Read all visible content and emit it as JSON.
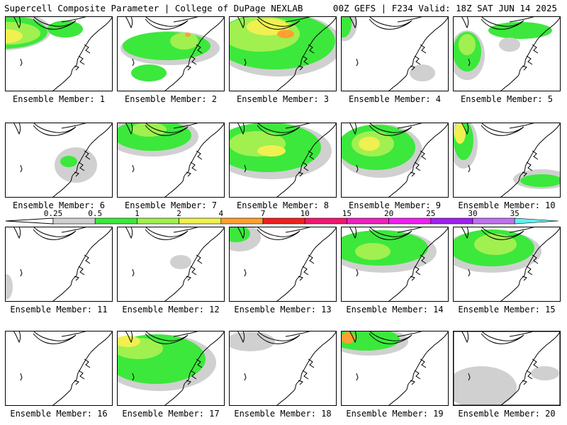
{
  "header": {
    "left": "Supercell Composite Parameter | College of DuPage NEXLAB",
    "right": "00Z GEFS | F234 Valid: 18Z SAT JUN 14 2025"
  },
  "colorbar": {
    "ticks": [
      "0.25",
      "0.5",
      "1",
      "2",
      "4",
      "7",
      "10",
      "15",
      "20",
      "25",
      "30",
      "35"
    ],
    "colors": [
      "#d0d0d0",
      "#3ce83c",
      "#a0f050",
      "#f0f050",
      "#ffa030",
      "#f02020",
      "#f01870",
      "#f020c0",
      "#f020f0",
      "#a020f0",
      "#c070f0",
      "#60f0f0"
    ]
  },
  "members": [
    {
      "label": "Ensemble Member: 1",
      "blobs": [
        {
          "x": -5,
          "y": 20,
          "rx": 70,
          "ry": 28,
          "c": 0
        },
        {
          "x": -5,
          "y": 22,
          "rx": 65,
          "ry": 24,
          "c": 1
        },
        {
          "x": 5,
          "y": 24,
          "rx": 45,
          "ry": 16,
          "c": 2
        },
        {
          "x": 0,
          "y": 28,
          "rx": 25,
          "ry": 10,
          "c": 3
        },
        {
          "x": 85,
          "y": 18,
          "rx": 25,
          "ry": 12,
          "c": 1
        }
      ]
    },
    {
      "label": "Ensemble Member: 2",
      "blobs": [
        {
          "x": 75,
          "y": 45,
          "rx": 70,
          "ry": 24,
          "c": 0
        },
        {
          "x": 70,
          "y": 42,
          "rx": 62,
          "ry": 20,
          "c": 1
        },
        {
          "x": 95,
          "y": 35,
          "rx": 20,
          "ry": 12,
          "c": 2
        },
        {
          "x": 45,
          "y": 80,
          "rx": 25,
          "ry": 12,
          "c": 1
        },
        {
          "x": 100,
          "y": 26,
          "rx": 4,
          "ry": 3,
          "c": 4
        }
      ]
    },
    {
      "label": "Ensemble Member: 3",
      "blobs": [
        {
          "x": 70,
          "y": 40,
          "rx": 90,
          "ry": 45,
          "c": 0
        },
        {
          "x": 65,
          "y": 35,
          "rx": 85,
          "ry": 40,
          "c": 1
        },
        {
          "x": 45,
          "y": 25,
          "rx": 55,
          "ry": 25,
          "c": 2
        },
        {
          "x": 55,
          "y": 15,
          "rx": 30,
          "ry": 12,
          "c": 3
        },
        {
          "x": 80,
          "y": 25,
          "rx": 12,
          "ry": 6,
          "c": 4
        }
      ]
    },
    {
      "label": "Ensemble Member: 4",
      "blobs": [
        {
          "x": 5,
          "y": 10,
          "rx": 18,
          "ry": 25,
          "c": 0
        },
        {
          "x": 3,
          "y": 10,
          "rx": 12,
          "ry": 20,
          "c": 1
        },
        {
          "x": 120,
          "y": 85,
          "rx": 8,
          "ry": 5,
          "c": 1
        },
        {
          "x": 115,
          "y": 80,
          "rx": 18,
          "ry": 12,
          "c": 0
        }
      ]
    },
    {
      "label": "Ensemble Member: 5",
      "blobs": [
        {
          "x": 20,
          "y": 55,
          "rx": 25,
          "ry": 35,
          "c": 0
        },
        {
          "x": 20,
          "y": 50,
          "rx": 20,
          "ry": 28,
          "c": 1
        },
        {
          "x": 20,
          "y": 40,
          "rx": 12,
          "ry": 15,
          "c": 2
        },
        {
          "x": 95,
          "y": 20,
          "rx": 45,
          "ry": 12,
          "c": 1
        },
        {
          "x": 80,
          "y": 40,
          "rx": 15,
          "ry": 10,
          "c": 0
        }
      ]
    },
    {
      "label": "Ensemble Member: 6",
      "blobs": [
        {
          "x": 100,
          "y": 60,
          "rx": 30,
          "ry": 25,
          "c": 0
        },
        {
          "x": 90,
          "y": 55,
          "rx": 12,
          "ry": 8,
          "c": 1
        }
      ]
    },
    {
      "label": "Ensemble Member: 7",
      "blobs": [
        {
          "x": 50,
          "y": 20,
          "rx": 65,
          "ry": 28,
          "c": 0
        },
        {
          "x": 50,
          "y": 18,
          "rx": 55,
          "ry": 22,
          "c": 1
        },
        {
          "x": 45,
          "y": 10,
          "rx": 25,
          "ry": 10,
          "c": 2
        }
      ]
    },
    {
      "label": "Ensemble Member: 8",
      "blobs": [
        {
          "x": 60,
          "y": 40,
          "rx": 85,
          "ry": 40,
          "c": 0
        },
        {
          "x": 55,
          "y": 35,
          "rx": 75,
          "ry": 35,
          "c": 1
        },
        {
          "x": 40,
          "y": 30,
          "rx": 40,
          "ry": 18,
          "c": 2
        },
        {
          "x": 60,
          "y": 40,
          "rx": 20,
          "ry": 8,
          "c": 3
        }
      ]
    },
    {
      "label": "Ensemble Member: 9",
      "blobs": [
        {
          "x": 55,
          "y": 40,
          "rx": 60,
          "ry": 38,
          "c": 0
        },
        {
          "x": 50,
          "y": 35,
          "rx": 55,
          "ry": 32,
          "c": 1
        },
        {
          "x": 45,
          "y": 30,
          "rx": 30,
          "ry": 18,
          "c": 2
        },
        {
          "x": 40,
          "y": 30,
          "rx": 15,
          "ry": 10,
          "c": 3
        }
      ]
    },
    {
      "label": "Ensemble Member: 10",
      "blobs": [
        {
          "x": 15,
          "y": 30,
          "rx": 20,
          "ry": 35,
          "c": 0
        },
        {
          "x": 15,
          "y": 25,
          "rx": 14,
          "ry": 28,
          "c": 1
        },
        {
          "x": 10,
          "y": 15,
          "rx": 8,
          "ry": 15,
          "c": 3
        },
        {
          "x": 125,
          "y": 80,
          "rx": 40,
          "ry": 14,
          "c": 0
        },
        {
          "x": 125,
          "y": 82,
          "rx": 30,
          "ry": 9,
          "c": 1
        }
      ]
    },
    {
      "label": "Ensemble Member: 11",
      "blobs": [
        {
          "x": 2,
          "y": 85,
          "rx": 6,
          "ry": 15,
          "c": 1
        },
        {
          "x": 2,
          "y": 85,
          "rx": 9,
          "ry": 18,
          "c": 0
        }
      ]
    },
    {
      "label": "Ensemble Member: 12",
      "blobs": [
        {
          "x": 90,
          "y": 50,
          "rx": 15,
          "ry": 10,
          "c": 0
        }
      ]
    },
    {
      "label": "Ensemble Member: 13",
      "blobs": [
        {
          "x": 15,
          "y": 15,
          "rx": 30,
          "ry": 20,
          "c": 0
        },
        {
          "x": 10,
          "y": 10,
          "rx": 20,
          "ry": 12,
          "c": 1
        }
      ]
    },
    {
      "label": "Ensemble Member: 14",
      "blobs": [
        {
          "x": 60,
          "y": 35,
          "rx": 75,
          "ry": 30,
          "c": 0
        },
        {
          "x": 55,
          "y": 30,
          "rx": 68,
          "ry": 25,
          "c": 1
        },
        {
          "x": 45,
          "y": 35,
          "rx": 25,
          "ry": 12,
          "c": 2
        }
      ]
    },
    {
      "label": "Ensemble Member: 15",
      "blobs": [
        {
          "x": 55,
          "y": 35,
          "rx": 70,
          "ry": 30,
          "c": 0
        },
        {
          "x": 55,
          "y": 30,
          "rx": 60,
          "ry": 26,
          "c": 1
        },
        {
          "x": 60,
          "y": 25,
          "rx": 30,
          "ry": 15,
          "c": 2
        }
      ]
    },
    {
      "label": "Ensemble Member: 16",
      "blobs": []
    },
    {
      "label": "Ensemble Member: 17",
      "blobs": [
        {
          "x": 60,
          "y": 45,
          "rx": 80,
          "ry": 40,
          "c": 0
        },
        {
          "x": 55,
          "y": 40,
          "rx": 70,
          "ry": 35,
          "c": 1
        },
        {
          "x": 30,
          "y": 25,
          "rx": 35,
          "ry": 15,
          "c": 2
        },
        {
          "x": 15,
          "y": 15,
          "rx": 18,
          "ry": 8,
          "c": 3
        }
      ]
    },
    {
      "label": "Ensemble Member: 18",
      "blobs": [
        {
          "x": 30,
          "y": 15,
          "rx": 28,
          "ry": 10,
          "c": 1
        },
        {
          "x": 30,
          "y": 15,
          "rx": 35,
          "ry": 14,
          "c": 0
        }
      ]
    },
    {
      "label": "Ensemble Member: 19",
      "blobs": [
        {
          "x": 40,
          "y": 15,
          "rx": 55,
          "ry": 20,
          "c": 0
        },
        {
          "x": 35,
          "y": 12,
          "rx": 48,
          "ry": 16,
          "c": 1
        },
        {
          "x": 10,
          "y": 10,
          "rx": 10,
          "ry": 8,
          "c": 4
        }
      ]
    },
    {
      "label": "Ensemble Member: 20",
      "blobs": [
        {
          "x": 40,
          "y": 80,
          "rx": 50,
          "ry": 30,
          "c": 0
        },
        {
          "x": 130,
          "y": 60,
          "rx": 20,
          "ry": 10,
          "c": 0
        }
      ]
    }
  ]
}
